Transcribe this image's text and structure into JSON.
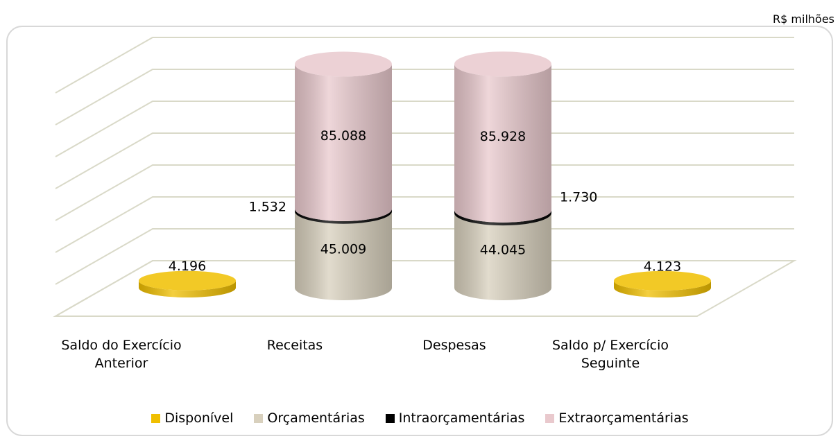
{
  "chart_data": {
    "type": "cylinder-stacked",
    "unit": "R$ milhões",
    "categories": [
      "Saldo do Exercício Anterior",
      "Receitas",
      "Despesas",
      "Saldo p/ Exercício Seguinte"
    ],
    "series": [
      {
        "name": "Disponível",
        "color": "#f0bf00",
        "values": [
          4196,
          null,
          null,
          4123
        ],
        "value_labels": [
          "4.196",
          null,
          null,
          "4.123"
        ]
      },
      {
        "name": "Orçamentárias",
        "color": "#d8d0bd",
        "values": [
          null,
          45009,
          44045,
          null
        ],
        "value_labels": [
          null,
          "45.009",
          "44.045",
          null
        ]
      },
      {
        "name": "Intraorçamentárias",
        "color": "#000000",
        "values": [
          null,
          1532,
          1730,
          null
        ],
        "value_labels": [
          null,
          "1.532",
          "1.730",
          null
        ]
      },
      {
        "name": "Extraorçamentárias",
        "color": "#e9c9cd",
        "values": [
          null,
          85088,
          85928,
          null
        ],
        "value_labels": [
          null,
          "85.088",
          "85.928",
          null
        ]
      }
    ],
    "ylim": [
      0,
      140000
    ],
    "yticks": [
      0,
      20000,
      40000,
      60000,
      80000,
      100000,
      120000,
      140000
    ],
    "grid": true,
    "legend": "bottom"
  }
}
